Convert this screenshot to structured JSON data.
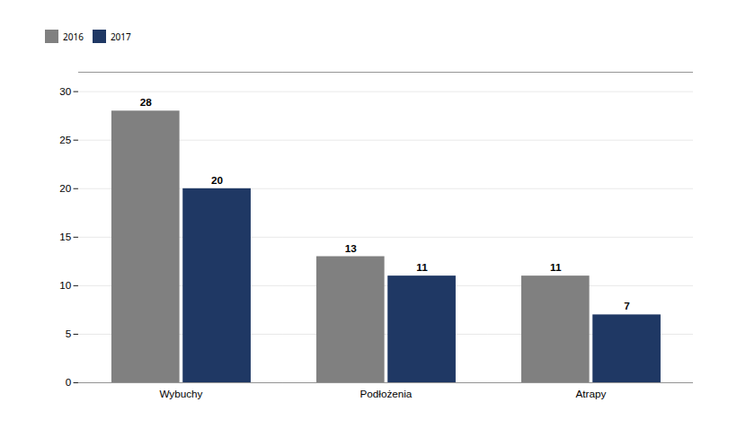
{
  "chart_data": {
    "type": "bar",
    "categories": [
      "Wybuchy",
      "Podłożenia",
      "Atrapy"
    ],
    "series": [
      {
        "name": "2016",
        "color": "#808080",
        "values": [
          28,
          13,
          11
        ]
      },
      {
        "name": "2017",
        "color": "#1F3864",
        "values": [
          20,
          11,
          7
        ]
      }
    ],
    "ylim": [
      0,
      32
    ],
    "yticks": [
      0,
      5,
      10,
      15,
      20,
      25,
      30
    ],
    "grid": true,
    "data_labels": true,
    "legend": "top"
  }
}
